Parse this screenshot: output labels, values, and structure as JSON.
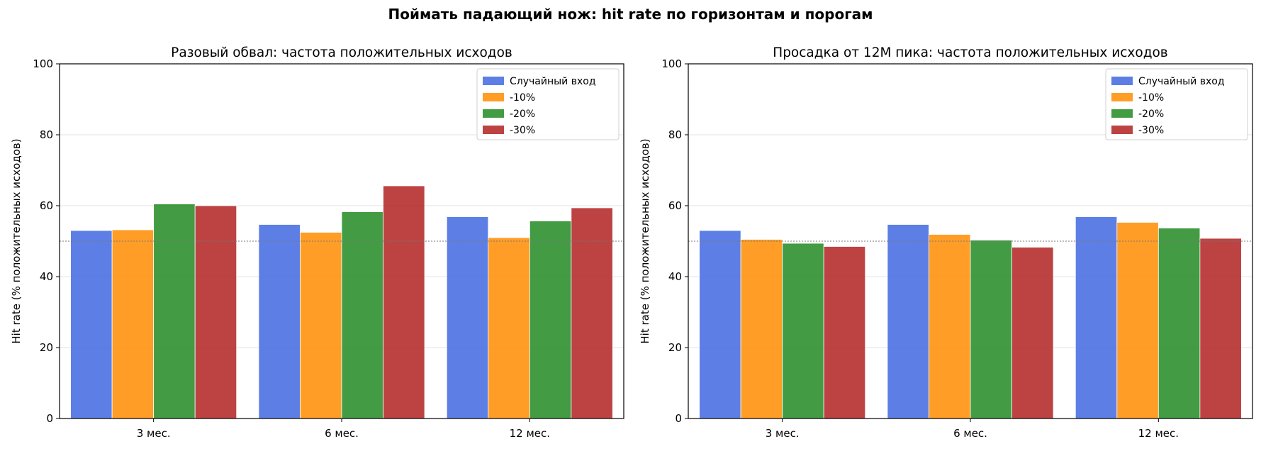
{
  "figure_title": "Поймать падающий нож: hit rate по горизонтам и порогам",
  "colors": {
    "random": "#4169e1",
    "m10": "#ff8c00",
    "m20": "#228b22",
    "m30": "#b22222"
  },
  "chart_data": [
    {
      "type": "bar",
      "title": "Разовый обвал: частота положительных исходов",
      "xlabel": "",
      "ylabel": "Hit rate (% положительных исходов)",
      "ylim": [
        0,
        100
      ],
      "yticks": [
        "0",
        "20",
        "40",
        "60",
        "80",
        "100"
      ],
      "categories": [
        "3 мес.",
        "6 мес.",
        "12 мес."
      ],
      "reference_line": 50,
      "grid": true,
      "legend_position": "top-right",
      "series": [
        {
          "name": "Случайный вход",
          "color": "#4169e1",
          "values": [
            53.0,
            54.7,
            56.9
          ]
        },
        {
          "name": "-10%",
          "color": "#ff8c00",
          "values": [
            53.2,
            52.5,
            51.0
          ]
        },
        {
          "name": "-20%",
          "color": "#228b22",
          "values": [
            60.5,
            58.3,
            55.7
          ]
        },
        {
          "name": "-30%",
          "color": "#b22222",
          "values": [
            60.0,
            65.6,
            59.4
          ]
        }
      ]
    },
    {
      "type": "bar",
      "title": "Просадка от 12М пика: частота положительных исходов",
      "xlabel": "",
      "ylabel": "Hit rate (% положительных исходов)",
      "ylim": [
        0,
        100
      ],
      "yticks": [
        "0",
        "20",
        "40",
        "60",
        "80",
        "100"
      ],
      "categories": [
        "3 мес.",
        "6 мес.",
        "12 мес."
      ],
      "reference_line": 50,
      "grid": true,
      "legend_position": "top-right",
      "series": [
        {
          "name": "Случайный вход",
          "color": "#4169e1",
          "values": [
            53.0,
            54.7,
            56.9
          ]
        },
        {
          "name": "-10%",
          "color": "#ff8c00",
          "values": [
            50.5,
            51.9,
            55.3
          ]
        },
        {
          "name": "-20%",
          "color": "#228b22",
          "values": [
            49.4,
            50.3,
            53.7
          ]
        },
        {
          "name": "-30%",
          "color": "#b22222",
          "values": [
            48.5,
            48.3,
            50.8
          ]
        }
      ]
    }
  ]
}
